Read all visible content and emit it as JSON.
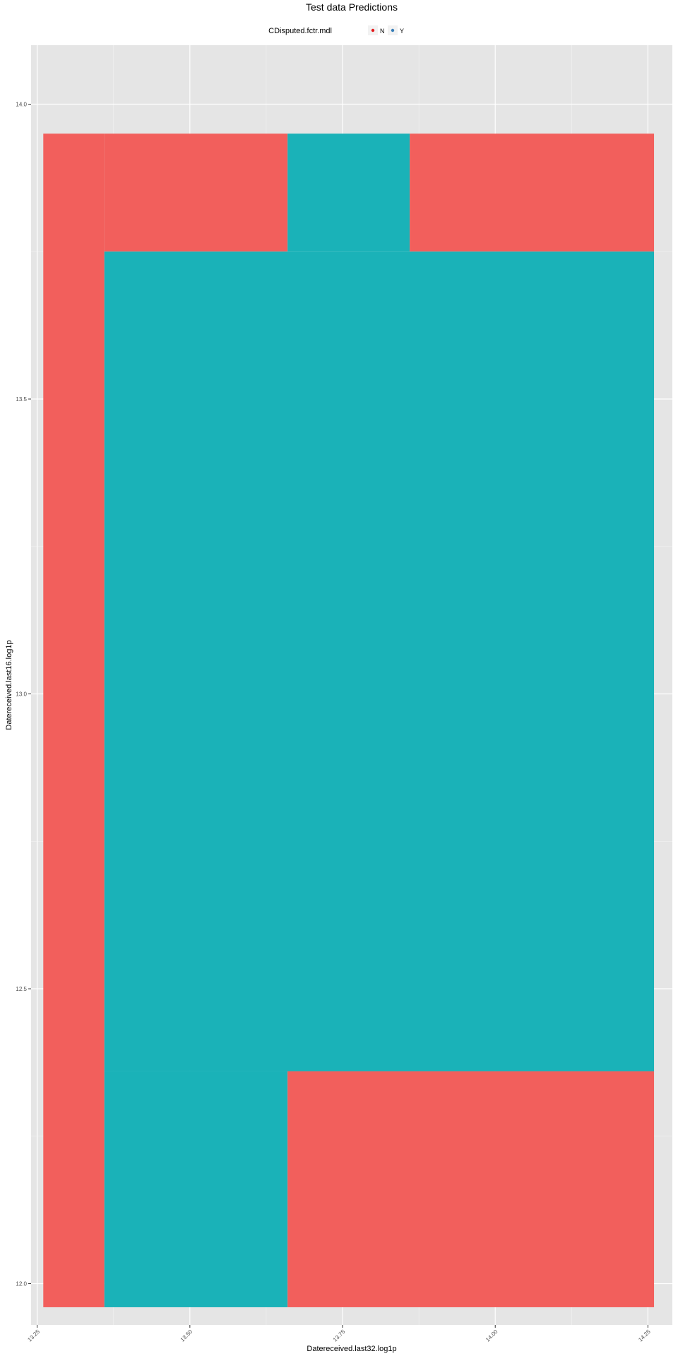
{
  "chart_data": {
    "type": "heatmap",
    "title": "Test data Predictions",
    "xlabel": "Datereceived.last32.log1p",
    "ylabel": "Datereceived.last16.log1p",
    "xlim": [
      13.24,
      14.29
    ],
    "ylim": [
      11.93,
      14.1
    ],
    "x_ticks": [
      "13.25",
      "13.50",
      "13.75",
      "14.00",
      "14.25"
    ],
    "x_tick_values": [
      13.25,
      13.5,
      13.75,
      14.0,
      14.25
    ],
    "y_ticks": [
      "12.0",
      "12.5",
      "13.0",
      "13.5",
      "14.0"
    ],
    "y_tick_values": [
      12.0,
      12.5,
      13.0,
      13.5,
      14.0
    ],
    "grid": true,
    "legend": {
      "title": "CDisputed.fctr.mdl",
      "position": "top",
      "entries": [
        {
          "label": "N",
          "color": "#e41a1c",
          "key": "N"
        },
        {
          "label": "Y",
          "color": "#377eb8",
          "key": "Y"
        }
      ]
    },
    "fill_colors": {
      "N": "#f25f5c",
      "Y": "#1ab2b8"
    },
    "tiles": [
      {
        "x0": 13.26,
        "x1": 13.36,
        "y0": 11.96,
        "y1": 13.95,
        "class": "N"
      },
      {
        "x0": 13.36,
        "x1": 13.66,
        "y0": 13.75,
        "y1": 13.95,
        "class": "N"
      },
      {
        "x0": 13.66,
        "x1": 13.86,
        "y0": 13.75,
        "y1": 13.95,
        "class": "Y"
      },
      {
        "x0": 13.86,
        "x1": 14.26,
        "y0": 13.75,
        "y1": 13.95,
        "class": "N"
      },
      {
        "x0": 13.36,
        "x1": 14.26,
        "y0": 12.36,
        "y1": 13.75,
        "class": "Y"
      },
      {
        "x0": 13.36,
        "x1": 13.66,
        "y0": 11.96,
        "y1": 12.36,
        "class": "Y"
      },
      {
        "x0": 13.66,
        "x1": 14.26,
        "y0": 11.96,
        "y1": 12.36,
        "class": "N"
      }
    ]
  }
}
